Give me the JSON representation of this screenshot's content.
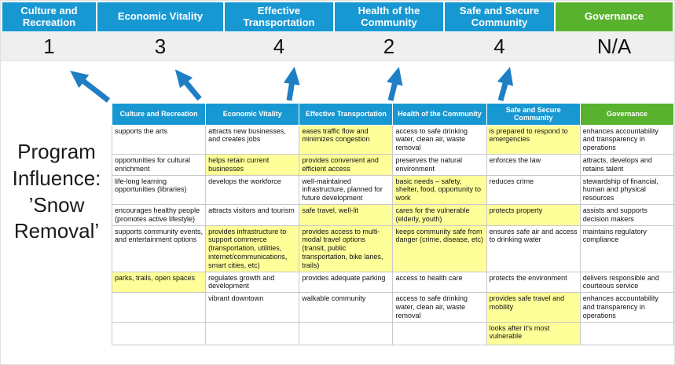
{
  "program_label": "Program Influence: ’Snow Removal’",
  "colors": {
    "blue": "#1898d3",
    "green": "#58b22e",
    "highlight": "#ffff99",
    "arrow": "#1f7fc4",
    "score_band": "#efefef"
  },
  "pillars": [
    {
      "label": "Culture and Recreation",
      "score": "1",
      "color": "blue"
    },
    {
      "label": "Economic Vitality",
      "score": "3",
      "color": "blue"
    },
    {
      "label": "Effective Transportation",
      "score": "4",
      "color": "blue"
    },
    {
      "label": "Health of the Community",
      "score": "2",
      "color": "blue"
    },
    {
      "label": "Safe and Secure Community",
      "score": "4",
      "color": "blue"
    },
    {
      "label": "Governance",
      "score": "N/A",
      "color": "green"
    }
  ],
  "matrix": {
    "headers": [
      "Culture and Recreation",
      "Economic Vitality",
      "Effective Transportation",
      "Health of the Community",
      "Safe and Secure Community",
      "Governance"
    ],
    "rows": [
      [
        {
          "t": "supports the arts",
          "h": false
        },
        {
          "t": "attracts new businesses, and creates jobs",
          "h": false
        },
        {
          "t": "eases traffic flow and minimizes congestion",
          "h": true
        },
        {
          "t": "access to safe drinking water, clean air, waste removal",
          "h": false
        },
        {
          "t": "is prepared to respond to emergencies",
          "h": true
        },
        {
          "t": "enhances accountability and transparency in operations",
          "h": false
        }
      ],
      [
        {
          "t": "opportunities for cultural enrichment",
          "h": false
        },
        {
          "t": "helps retain current businesses",
          "h": true
        },
        {
          "t": "provides convenient and efficient access",
          "h": true
        },
        {
          "t": "preserves the natural environment",
          "h": false
        },
        {
          "t": "enforces the law",
          "h": false
        },
        {
          "t": "attracts, develops and retains talent",
          "h": false
        }
      ],
      [
        {
          "t": "life-long learning opportunities (libraries)",
          "h": false
        },
        {
          "t": "develops the workforce",
          "h": false
        },
        {
          "t": "well-maintained infrastructure, planned for future development",
          "h": false
        },
        {
          "t": "basic needs – safety, shelter, food, opportunity to work",
          "h": true
        },
        {
          "t": "reduces crime",
          "h": false
        },
        {
          "t": "stewardship of financial, human and physical resources",
          "h": false
        }
      ],
      [
        {
          "t": "encourages healthy people (promotes active lifestyle)",
          "h": false
        },
        {
          "t": "attracts visitors and tourism",
          "h": false
        },
        {
          "t": "safe travel, well-lit",
          "h": true
        },
        {
          "t": "cares for the vulnerable (elderly, youth)",
          "h": true
        },
        {
          "t": "protects property",
          "h": true
        },
        {
          "t": "assists and supports decision makers",
          "h": false
        }
      ],
      [
        {
          "t": "supports community events, and entertainment options",
          "h": false
        },
        {
          "t": "provides infrastructure to support commerce (transportation, utilities, internet/communications, smart cities, etc)",
          "h": true
        },
        {
          "t": "provides access to multi-modal travel options (transit, public transportation, bike lanes, trails)",
          "h": true
        },
        {
          "t": "keeps community safe from danger (crime, disease, etc)",
          "h": true
        },
        {
          "t": "ensures safe air and access to drinking water",
          "h": false
        },
        {
          "t": "maintains regulatory compliance",
          "h": false
        }
      ],
      [
        {
          "t": "parks, trails, open spaces",
          "h": true
        },
        {
          "t": "regulates growth and development",
          "h": false
        },
        {
          "t": "provides adequate parking",
          "h": false
        },
        {
          "t": "access to health care",
          "h": false
        },
        {
          "t": "protects the environment",
          "h": false
        },
        {
          "t": "delivers responsible and courteous service",
          "h": false
        }
      ],
      [
        {
          "t": "",
          "h": false
        },
        {
          "t": "vibrant downtown",
          "h": false
        },
        {
          "t": "walkable community",
          "h": false
        },
        {
          "t": "access to safe drinking water, clean air, waste removal",
          "h": false
        },
        {
          "t": "provides safe travel and mobility",
          "h": true
        },
        {
          "t": "enhances accountability and transparency in operations",
          "h": false
        }
      ],
      [
        {
          "t": "",
          "h": false
        },
        {
          "t": "",
          "h": false
        },
        {
          "t": "",
          "h": false
        },
        {
          "t": "",
          "h": false
        },
        {
          "t": "looks after it's most vulnerable",
          "h": true
        },
        {
          "t": "",
          "h": false
        }
      ]
    ]
  }
}
